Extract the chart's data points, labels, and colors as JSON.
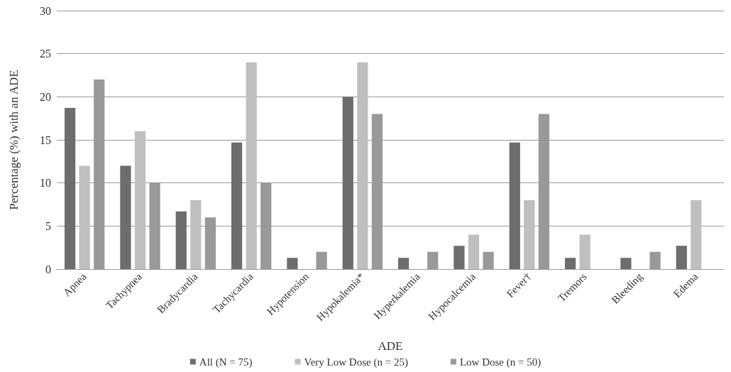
{
  "chart_data": {
    "type": "bar",
    "xlabel": "ADE",
    "ylabel": "Percentage (%) with an ADE",
    "categories": [
      "Apnea",
      "Tachypnea",
      "Bradycardia",
      "Tachycardia",
      "Hypotension",
      "Hypokalemia*",
      "Hyperkalemia",
      "Hypocalcemia",
      "Fever†",
      "Tremors",
      "Bleeding",
      "Edema"
    ],
    "series": [
      {
        "name": "All (N = 75)",
        "color": "#6d6d6d",
        "values": [
          18.7,
          12,
          6.7,
          14.7,
          1.3,
          20,
          1.3,
          2.7,
          14.7,
          1.3,
          1.3,
          2.7
        ]
      },
      {
        "name": "Very Low Dose (n = 25)",
        "color": "#bfbfbf",
        "values": [
          12,
          16,
          8,
          24,
          0,
          24,
          0,
          4,
          8,
          4,
          0,
          8
        ]
      },
      {
        "name": "Low Dose (n = 50)",
        "color": "#999999",
        "values": [
          22,
          10,
          6,
          10,
          2,
          18,
          2,
          2,
          18,
          0,
          2,
          0
        ]
      }
    ],
    "ylim": [
      0,
      30
    ],
    "yticks": [
      0,
      5,
      10,
      15,
      20,
      25,
      30
    ],
    "grid": "y",
    "legend": "bottom"
  }
}
